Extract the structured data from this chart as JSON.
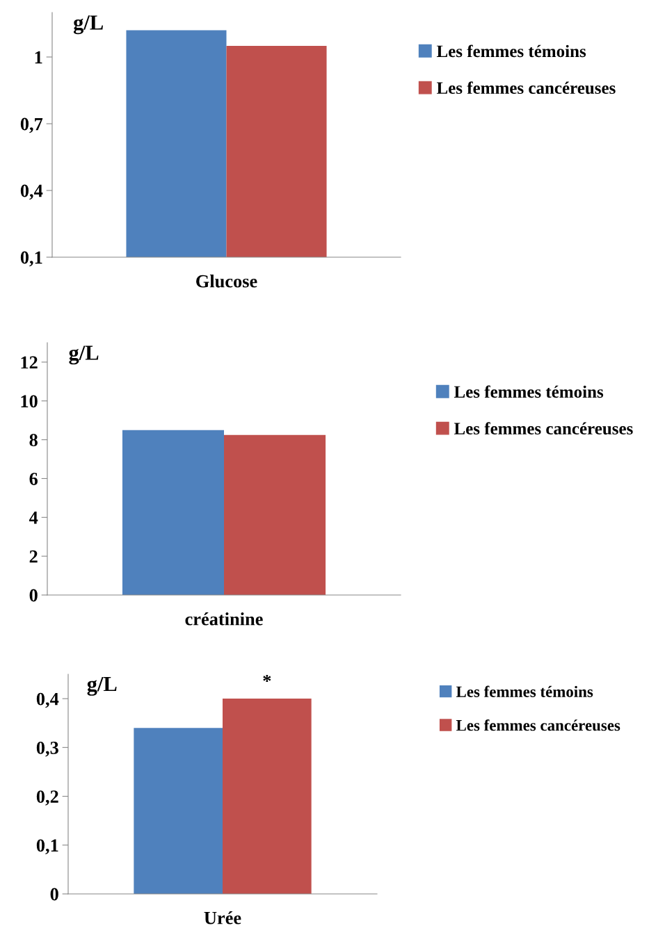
{
  "chart_data": [
    {
      "type": "bar",
      "ylabel": "g/L",
      "categories": [
        "Glucose"
      ],
      "series": [
        {
          "name": "Les femmes témoins",
          "color": "#4f81bd",
          "values": [
            1.12
          ]
        },
        {
          "name": "Les femmes cancéreuses",
          "color": "#c0504d",
          "values": [
            1.05
          ]
        }
      ],
      "ylim": [
        0.1,
        1.2
      ],
      "yticks": [
        {
          "value": 0.1,
          "label": "0,1"
        },
        {
          "value": 0.4,
          "label": "0,4"
        },
        {
          "value": 0.7,
          "label": "0,7"
        },
        {
          "value": 1,
          "label": "1"
        }
      ],
      "grid": false,
      "legend": "right"
    },
    {
      "type": "bar",
      "ylabel": "g/L",
      "categories": [
        "créatinine"
      ],
      "series": [
        {
          "name": "Les femmes témoins",
          "color": "#4f81bd",
          "values": [
            8.5
          ]
        },
        {
          "name": "Les femmes cancéreuses",
          "color": "#c0504d",
          "values": [
            8.25
          ]
        }
      ],
      "ylim": [
        0,
        13
      ],
      "yticks": [
        0,
        2,
        4,
        6,
        8,
        10,
        12
      ],
      "grid": false,
      "legend": "right"
    },
    {
      "type": "bar",
      "ylabel": "g/L",
      "categories": [
        "Urée"
      ],
      "series": [
        {
          "name": "Les femmes témoins",
          "color": "#4f81bd",
          "values": [
            0.34
          ]
        },
        {
          "name": "Les femmes cancéreuses",
          "color": "#c0504d",
          "values": [
            0.4
          ]
        }
      ],
      "ylim": [
        0,
        0.45
      ],
      "yticks": [
        0,
        {
          "value": 0.1,
          "label": "0,1"
        },
        {
          "value": 0.2,
          "label": "0,2"
        },
        {
          "value": 0.3,
          "label": "0,3"
        },
        {
          "value": 0.4,
          "label": "0,4"
        }
      ],
      "grid": false,
      "legend": "right",
      "annotations": [
        {
          "text": "*",
          "x": "Urée",
          "y": 0.4
        }
      ]
    }
  ]
}
